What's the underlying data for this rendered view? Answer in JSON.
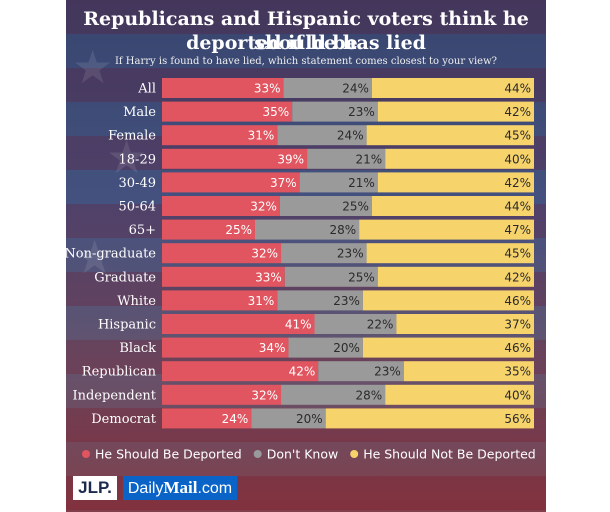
{
  "chart_data": {
    "type": "bar",
    "stacked": true,
    "orientation": "horizontal",
    "title_line1": "Republicans and Hispanic voters think he should be",
    "title_line2": "deported if he has lied",
    "subtitle": "If Harry is found to have lied, which statement comes closest to your view?",
    "categories": [
      "All",
      "Male",
      "Female",
      "18-29",
      "30-49",
      "50-64",
      "65+",
      "Non-graduate",
      "Graduate",
      "White",
      "Hispanic",
      "Black",
      "Republican",
      "Independent",
      "Democrat"
    ],
    "series": [
      {
        "name": "He Should Be Deported",
        "color": "#e0555f",
        "values": [
          33,
          35,
          31,
          39,
          37,
          32,
          25,
          32,
          33,
          31,
          41,
          34,
          42,
          32,
          24
        ]
      },
      {
        "name": "Don't Know",
        "color": "#9a9a9a",
        "values": [
          24,
          23,
          24,
          21,
          21,
          25,
          28,
          23,
          25,
          23,
          22,
          20,
          23,
          28,
          20
        ]
      },
      {
        "name": "He Should Not Be Deported",
        "color": "#f7d36b",
        "values": [
          44,
          42,
          45,
          40,
          42,
          44,
          47,
          45,
          42,
          46,
          37,
          46,
          35,
          40,
          56
        ]
      }
    ],
    "value_suffix": "%",
    "legend_position": "bottom"
  },
  "branding": {
    "logo_left": "JLP.",
    "logo_right_plain": "Daily",
    "logo_right_bold": "Mail",
    "logo_right_suffix": ".com"
  }
}
